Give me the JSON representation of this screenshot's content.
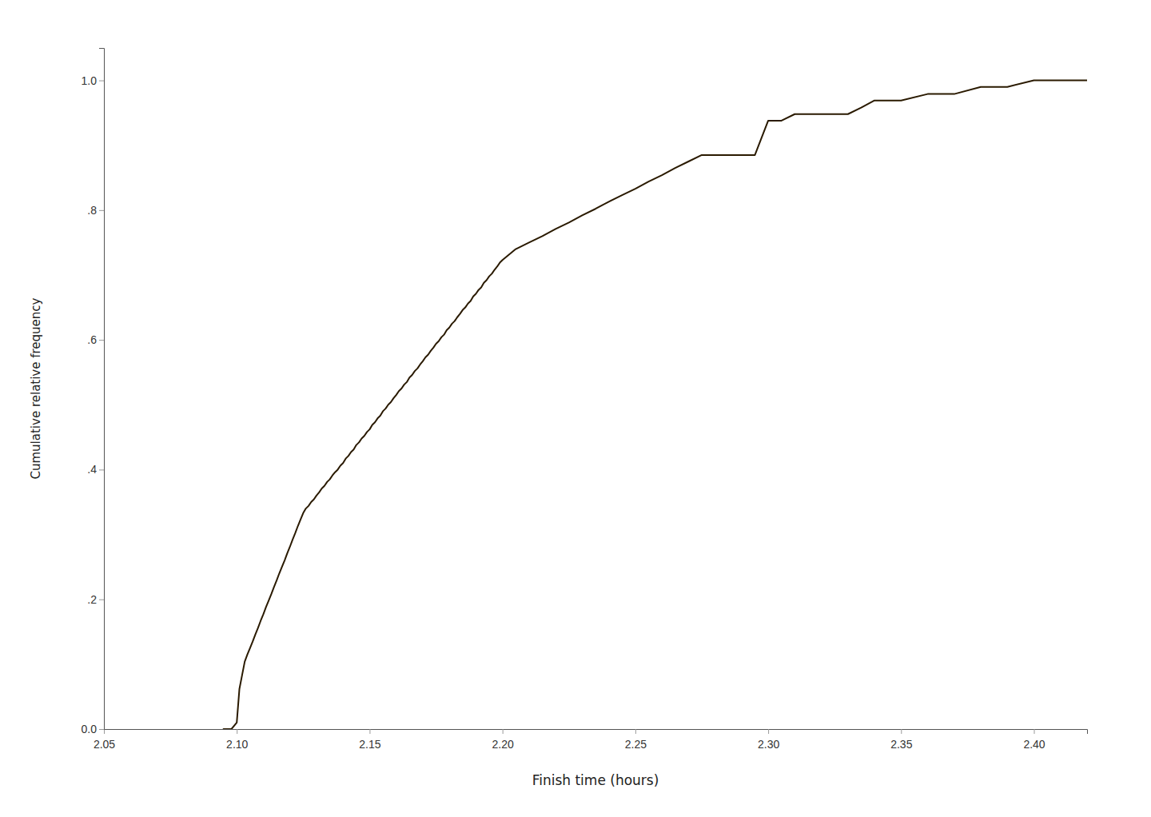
{
  "chart_data": {
    "type": "line",
    "xlabel": "Finish time (hours)",
    "ylabel": "Cumulative relative frequency",
    "color": "#2a1a00",
    "grid": false,
    "xlim": [
      2.05,
      2.42
    ],
    "ylim": [
      0.0,
      1.05
    ],
    "xticks": [
      {
        "value": 2.05,
        "label": "2.05"
      },
      {
        "value": 2.1,
        "label": "2.10"
      },
      2.15,
      {
        "value": 2.2,
        "label": "2.20"
      },
      2.25,
      {
        "value": 2.3,
        "label": "2.30"
      },
      2.35,
      {
        "value": 2.4,
        "label": "2.40"
      }
    ],
    "yticks": [
      {
        "value": 0.0,
        "label": "0.0"
      },
      {
        "value": 0.2,
        "label": ".2"
      },
      {
        "value": 0.4,
        "label": ".4"
      },
      {
        "value": 0.6,
        "label": ".6"
      },
      {
        "value": 0.8,
        "label": ".8"
      },
      {
        "value": 1.0,
        "label": "1.0"
      }
    ],
    "x": [
      2.095,
      2.098,
      2.1,
      2.101,
      2.102,
      2.103,
      2.104,
      2.105,
      2.106,
      2.107,
      2.108,
      2.109,
      2.11,
      2.111,
      2.112,
      2.113,
      2.114,
      2.115,
      2.116,
      2.117,
      2.118,
      2.119,
      2.12,
      2.121,
      2.122,
      2.123,
      2.124,
      2.125,
      2.126,
      2.127,
      2.128,
      2.129,
      2.13,
      2.131,
      2.132,
      2.133,
      2.134,
      2.135,
      2.136,
      2.137,
      2.138,
      2.139,
      2.14,
      2.141,
      2.142,
      2.143,
      2.144,
      2.145,
      2.146,
      2.147,
      2.148,
      2.149,
      2.15,
      2.151,
      2.152,
      2.153,
      2.154,
      2.155,
      2.156,
      2.157,
      2.158,
      2.159,
      2.16,
      2.161,
      2.162,
      2.163,
      2.164,
      2.165,
      2.166,
      2.167,
      2.168,
      2.169,
      2.17,
      2.171,
      2.172,
      2.173,
      2.174,
      2.175,
      2.176,
      2.177,
      2.178,
      2.179,
      2.18,
      2.181,
      2.182,
      2.183,
      2.184,
      2.185,
      2.186,
      2.187,
      2.188,
      2.189,
      2.19,
      2.191,
      2.192,
      2.193,
      2.194,
      2.195,
      2.196,
      2.197,
      2.198,
      2.199,
      2.2,
      2.205,
      2.21,
      2.215,
      2.22,
      2.225,
      2.23,
      2.235,
      2.24,
      2.245,
      2.25,
      2.255,
      2.26,
      2.265,
      2.27,
      2.275,
      2.28,
      2.285,
      2.29,
      2.295,
      2.3,
      2.305,
      2.31,
      2.315,
      2.32,
      2.325,
      2.33,
      2.335,
      2.34,
      2.345,
      2.35,
      2.36,
      2.37,
      2.38,
      2.39,
      2.4,
      2.41,
      2.42
    ],
    "values": [
      0.0,
      0.0,
      0.01,
      0.062,
      0.083,
      0.104,
      0.115,
      0.125,
      0.135,
      0.146,
      0.156,
      0.167,
      0.177,
      0.188,
      0.198,
      0.208,
      0.219,
      0.229,
      0.24,
      0.25,
      0.26,
      0.271,
      0.281,
      0.292,
      0.302,
      0.313,
      0.323,
      0.333,
      0.34,
      0.344,
      0.35,
      0.354,
      0.36,
      0.365,
      0.371,
      0.375,
      0.381,
      0.385,
      0.391,
      0.396,
      0.4,
      0.406,
      0.41,
      0.417,
      0.421,
      0.427,
      0.431,
      0.438,
      0.442,
      0.448,
      0.452,
      0.458,
      0.462,
      0.469,
      0.473,
      0.479,
      0.483,
      0.49,
      0.494,
      0.5,
      0.504,
      0.51,
      0.515,
      0.521,
      0.525,
      0.531,
      0.535,
      0.542,
      0.546,
      0.552,
      0.556,
      0.562,
      0.567,
      0.573,
      0.577,
      0.583,
      0.588,
      0.594,
      0.598,
      0.604,
      0.608,
      0.615,
      0.619,
      0.625,
      0.629,
      0.635,
      0.64,
      0.646,
      0.65,
      0.656,
      0.66,
      0.667,
      0.671,
      0.677,
      0.681,
      0.688,
      0.692,
      0.698,
      0.702,
      0.708,
      0.713,
      0.719,
      0.723,
      0.74,
      0.75,
      0.76,
      0.771,
      0.781,
      0.792,
      0.802,
      0.813,
      0.823,
      0.833,
      0.844,
      0.854,
      0.865,
      0.875,
      0.885,
      0.885,
      0.885,
      0.885,
      0.885,
      0.938,
      0.938,
      0.948,
      0.948,
      0.948,
      0.948,
      0.948,
      0.958,
      0.969,
      0.969,
      0.969,
      0.979,
      0.979,
      0.99,
      0.99,
      1.0,
      1.0,
      1.0
    ]
  }
}
